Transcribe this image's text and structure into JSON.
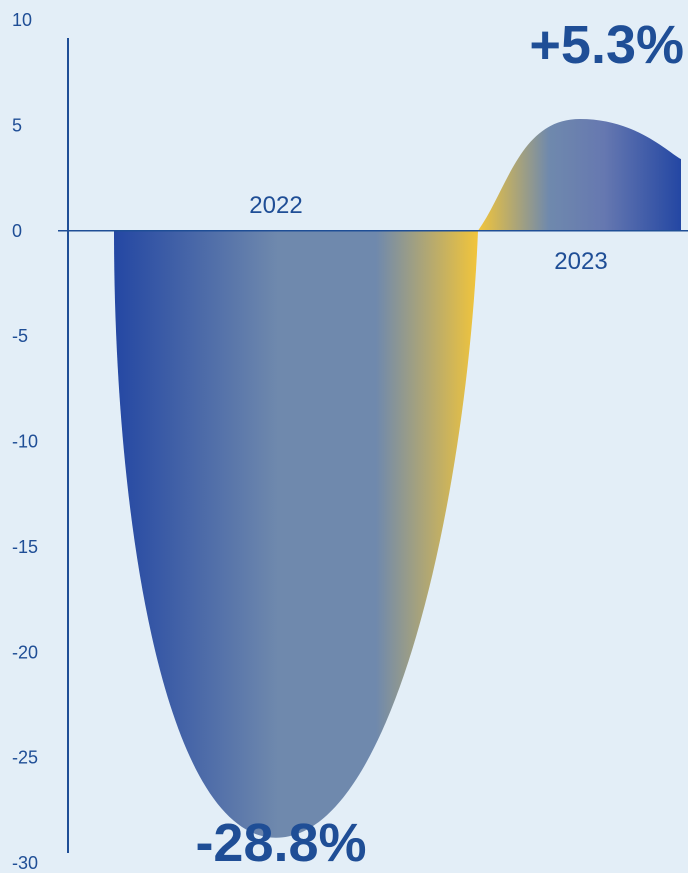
{
  "chart_data": {
    "type": "area",
    "ylim": [
      -30,
      10
    ],
    "yticks": [
      10,
      5,
      0,
      -5,
      -10,
      -15,
      -20,
      -25,
      -30
    ],
    "ytick_labels": [
      "10",
      "5",
      "0",
      "-5",
      "-10",
      "-15",
      "-20",
      "-25",
      "-30"
    ],
    "categories": [
      "2022",
      "2023"
    ],
    "series": [
      {
        "values": [
          -28.8,
          5.3
        ]
      }
    ],
    "annotations": [
      {
        "category": "2022",
        "text": "-28.8%"
      },
      {
        "category": "2023",
        "text": "+5.3%"
      }
    ],
    "grid": false,
    "colors": {
      "text": "#1f4e96",
      "axis": "#1f4e96",
      "gradient_blue": "#2447a3",
      "gradient_mid": "#6f89ad",
      "gradient_yellow": "#f2c53a",
      "background": "#e3eef7"
    }
  }
}
